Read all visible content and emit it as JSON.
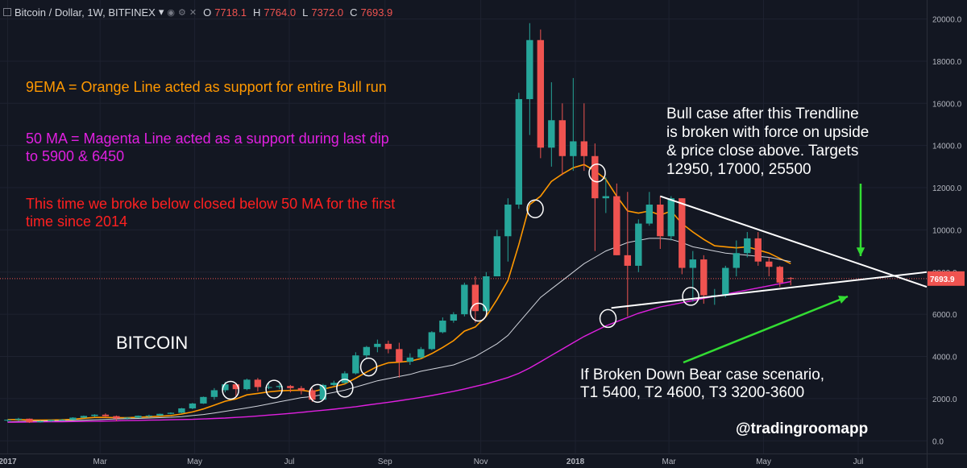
{
  "header": {
    "symbol": "Bitcoin / Dollar, 1W, BITFINEX",
    "dropdown": "▾",
    "ohlc": [
      {
        "k": "O",
        "v": "7718.1"
      },
      {
        "k": "H",
        "v": "7764.0"
      },
      {
        "k": "L",
        "v": "7372.0"
      },
      {
        "k": "C",
        "v": "7693.9"
      }
    ]
  },
  "annotations": {
    "ema": "9EMA = Orange Line acted as support for entire Bull run",
    "ma50_line1": "50 MA = Magenta Line acted as a support during last dip",
    "ma50_line2": "to 5900 & 6450",
    "broke_line1": "This time we broke below closed below 50 MA for the first",
    "broke_line2": "time since 2014",
    "bitcoin": "BITCOIN",
    "bull_line1": "Bull case after this Trendline",
    "bull_line2": "is broken with force on upside",
    "bull_line3": "& price close above. Targets",
    "bull_line4": "12950, 17000, 25500",
    "bear_line1": "If Broken Down Bear case scenario,",
    "bear_line2": "T1 5400, T2 4600, T3 3200-3600",
    "handle": "@tradingroomapp"
  },
  "colors": {
    "background": "#131722",
    "up": "#26a69a",
    "down": "#ef5350",
    "ema9": "#ff9800",
    "ma50": "#e020e0",
    "ma20": "#d1d4dc",
    "orange_text": "#ff9800",
    "magenta_text": "#e020e0",
    "red_text": "#ff2020",
    "green_arrow": "#33dd33",
    "price_label": "#ef5350"
  },
  "chart_data": {
    "type": "candlestick",
    "symbol": "Bitcoin / Dollar",
    "timeframe": "1W",
    "exchange": "BITFINEX",
    "last_price": "7693.9",
    "y_ticks": [
      "20000.0",
      "18000.0",
      "16000.0",
      "14000.0",
      "12000.0",
      "10000.0",
      "8000.0",
      "6000.0",
      "4000.0",
      "2000.0",
      "0.0"
    ],
    "y_tick_values": [
      20000,
      18000,
      16000,
      14000,
      12000,
      10000,
      8000,
      6000,
      4000,
      2000,
      0
    ],
    "ylim": [
      -600,
      20900
    ],
    "x_ticks": [
      {
        "label": "2017",
        "week": 0
      },
      {
        "label": "Mar",
        "week": 8.5
      },
      {
        "label": "May",
        "week": 17.2
      },
      {
        "label": "Jul",
        "week": 25.9
      },
      {
        "label": "Sep",
        "week": 34.7
      },
      {
        "label": "Nov",
        "week": 43.5
      },
      {
        "label": "2018",
        "week": 52.2
      },
      {
        "label": "Mar",
        "week": 60.8
      },
      {
        "label": "May",
        "week": 69.5
      },
      {
        "label": "Jul",
        "week": 78.2
      }
    ],
    "x_range_weeks": [
      -0.7,
      84.5
    ],
    "candles": [
      [
        960,
        1020,
        900,
        1000
      ],
      [
        1000,
        1090,
        940,
        1050
      ],
      [
        1050,
        1060,
        850,
        880
      ],
      [
        880,
        960,
        860,
        930
      ],
      [
        930,
        1010,
        900,
        990
      ],
      [
        990,
        1040,
        960,
        1000
      ],
      [
        1000,
        1120,
        990,
        1100
      ],
      [
        1100,
        1200,
        1080,
        1180
      ],
      [
        1180,
        1260,
        1130,
        1240
      ],
      [
        1240,
        1300,
        1150,
        1170
      ],
      [
        1170,
        1200,
        940,
        1060
      ],
      [
        1060,
        1130,
        1010,
        1100
      ],
      [
        1100,
        1200,
        1080,
        1190
      ],
      [
        1190,
        1240,
        1120,
        1200
      ],
      [
        1200,
        1290,
        1180,
        1280
      ],
      [
        1280,
        1350,
        1260,
        1330
      ],
      [
        1330,
        1560,
        1310,
        1540
      ],
      [
        1540,
        1800,
        1500,
        1770
      ],
      [
        1770,
        2100,
        1750,
        2080
      ],
      [
        2080,
        2500,
        1950,
        2400
      ],
      [
        2400,
        2800,
        2300,
        2680
      ],
      [
        2680,
        2750,
        2100,
        2450
      ],
      [
        2450,
        2950,
        2400,
        2900
      ],
      [
        2900,
        2980,
        2350,
        2550
      ],
      [
        2550,
        2780,
        2450,
        2550
      ],
      [
        2550,
        2700,
        2450,
        2600
      ],
      [
        2600,
        2650,
        2300,
        2500
      ],
      [
        2500,
        2600,
        2200,
        2400
      ],
      [
        2400,
        2500,
        1850,
        1950
      ],
      [
        1950,
        2700,
        1930,
        2650
      ],
      [
        2650,
        2850,
        2600,
        2750
      ],
      [
        2750,
        3300,
        2700,
        3200
      ],
      [
        3200,
        4200,
        3150,
        4050
      ],
      [
        4050,
        4500,
        3900,
        4450
      ],
      [
        4450,
        4800,
        4200,
        4600
      ],
      [
        4600,
        4750,
        4150,
        4350
      ],
      [
        4350,
        4650,
        3000,
        3750
      ],
      [
        3750,
        4150,
        3600,
        3950
      ],
      [
        3950,
        4450,
        3900,
        4350
      ],
      [
        4350,
        5200,
        4300,
        5150
      ],
      [
        5150,
        5850,
        5100,
        5700
      ],
      [
        5700,
        6100,
        5600,
        6000
      ],
      [
        6000,
        7500,
        5900,
        7400
      ],
      [
        7400,
        7800,
        5600,
        6150
      ],
      [
        6150,
        8000,
        6100,
        7800
      ],
      [
        7800,
        10000,
        7800,
        9700
      ],
      [
        9700,
        11500,
        8500,
        11200
      ],
      [
        11200,
        16500,
        11000,
        16200
      ],
      [
        16200,
        19800,
        14500,
        19000
      ],
      [
        19000,
        19500,
        13400,
        13900
      ],
      [
        13900,
        17000,
        13000,
        15200
      ],
      [
        15200,
        16000,
        12600,
        13500
      ],
      [
        13500,
        17200,
        12800,
        14200
      ],
      [
        14200,
        16000,
        12800,
        13500
      ],
      [
        13500,
        14100,
        9000,
        11500
      ],
      [
        11500,
        12500,
        10800,
        11600
      ],
      [
        11600,
        12200,
        8800,
        8800
      ],
      [
        8800,
        11800,
        5900,
        8300
      ],
      [
        8300,
        10500,
        8000,
        10300
      ],
      [
        10300,
        11800,
        10200,
        11200
      ],
      [
        11200,
        11600,
        9100,
        9700
      ],
      [
        9700,
        11600,
        9500,
        11500
      ],
      [
        11500,
        11500,
        7900,
        8200
      ],
      [
        8200,
        9000,
        6600,
        8600
      ],
      [
        8600,
        8800,
        6500,
        6900
      ],
      [
        6900,
        7200,
        6450,
        6900
      ],
      [
        6900,
        8300,
        6800,
        8200
      ],
      [
        8200,
        9500,
        7800,
        8900
      ],
      [
        8900,
        9900,
        8700,
        9600
      ],
      [
        9600,
        9900,
        8300,
        8500
      ],
      [
        8500,
        8700,
        7800,
        8250
      ],
      [
        8250,
        8300,
        7300,
        7500
      ],
      [
        7718.1,
        7764,
        7372,
        7693.9
      ]
    ],
    "series": [
      {
        "name": "9EMA",
        "values": [
          1000,
          1010,
          990,
          980,
          990,
          995,
          1020,
          1070,
          1110,
          1110,
          1100,
          1100,
          1120,
          1140,
          1170,
          1200,
          1270,
          1370,
          1510,
          1690,
          1880,
          1990,
          2180,
          2250,
          2320,
          2370,
          2390,
          2400,
          2330,
          2450,
          2570,
          2700,
          2970,
          3260,
          3530,
          3700,
          3730,
          3780,
          3900,
          4140,
          4430,
          4750,
          5200,
          5400,
          5900,
          6700,
          7600,
          9300,
          11200,
          11600,
          12300,
          12650,
          12950,
          13100,
          12800,
          12400,
          11600,
          10900,
          10800,
          10900,
          10700,
          10900,
          10300,
          9900,
          9550,
          9250,
          9200,
          9150,
          9200,
          9050,
          8900,
          8650,
          8400
        ]
      },
      {
        "name": "MA20",
        "values": [
          900,
          920,
          930,
          940,
          950,
          955,
          965,
          980,
          1000,
          1020,
          1040,
          1050,
          1060,
          1080,
          1100,
          1120,
          1150,
          1200,
          1250,
          1320,
          1400,
          1480,
          1560,
          1650,
          1750,
          1850,
          1950,
          2050,
          2100,
          2200,
          2300,
          2400,
          2550,
          2700,
          2850,
          2950,
          3050,
          3150,
          3300,
          3400,
          3500,
          3600,
          3800,
          4000,
          4300,
          4600,
          5000,
          5600,
          6200,
          6800,
          7200,
          7600,
          8000,
          8400,
          8700,
          9000,
          9200,
          9400,
          9500,
          9600,
          9600,
          9550,
          9400,
          9200,
          9100,
          9000,
          8900,
          8850,
          8800,
          8750,
          8700,
          8600,
          8500
        ]
      },
      {
        "name": "MA50",
        "values": [
          880,
          890,
          895,
          900,
          905,
          910,
          915,
          920,
          930,
          940,
          950,
          960,
          970,
          980,
          990,
          1000,
          1010,
          1020,
          1040,
          1060,
          1080,
          1110,
          1140,
          1180,
          1220,
          1260,
          1300,
          1350,
          1400,
          1450,
          1500,
          1560,
          1620,
          1690,
          1760,
          1830,
          1900,
          1980,
          2060,
          2150,
          2250,
          2350,
          2460,
          2580,
          2700,
          2850,
          3000,
          3200,
          3450,
          3750,
          4050,
          4350,
          4650,
          4950,
          5200,
          5450,
          5650,
          5850,
          6050,
          6200,
          6350,
          6450,
          6550,
          6650,
          6750,
          6850,
          6950,
          7050,
          7150,
          7250,
          7350,
          7450,
          7550
        ]
      }
    ],
    "trendlines": [
      {
        "name": "upper",
        "points": [
          [
            60.0,
            11600
          ],
          [
            84.5,
            7300
          ]
        ]
      },
      {
        "name": "lower",
        "points": [
          [
            55.5,
            6300
          ],
          [
            84.5,
            8000
          ]
        ]
      }
    ]
  }
}
